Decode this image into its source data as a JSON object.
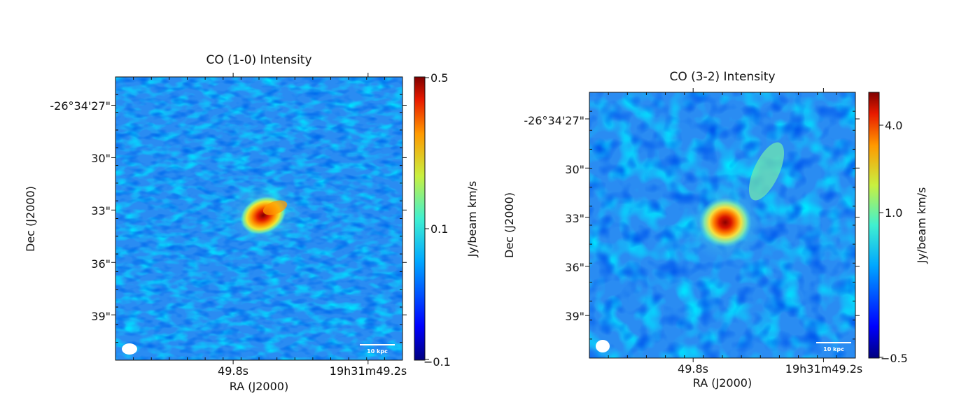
{
  "chart_data": [
    {
      "type": "heatmap",
      "title": "CO (1-0) Intensity",
      "xlabel": "RA (J2000)",
      "ylabel": "Dec (J2000)",
      "x_ticks": [
        "49.8s",
        "19h31m49.2s"
      ],
      "y_ticks": [
        "-26°34'27\"",
        "30\"",
        "33\"",
        "36\"",
        "39\""
      ],
      "colorbar": {
        "label": "Jy/beam km/s",
        "ticks": [
          "0.5",
          "0.1",
          "−0.1"
        ],
        "range": [
          -0.1,
          0.5
        ],
        "colormap": "jet"
      },
      "scalebar_label": "10 kpc",
      "peak": {
        "ra_fraction": 0.5,
        "dec": "33.3\"",
        "value": 0.5
      }
    },
    {
      "type": "heatmap",
      "title": "CO (3-2) Intensity",
      "xlabel": "RA (J2000)",
      "ylabel": "Dec (J2000)",
      "x_ticks": [
        "49.8s",
        "19h31m49.2s"
      ],
      "y_ticks": [
        "-26°34'27\"",
        "30\"",
        "33\"",
        "36\"",
        "39\""
      ],
      "colorbar": {
        "label": "Jy/beam km/s",
        "ticks": [
          "4.0",
          "1.0",
          "−0.5"
        ],
        "range": [
          -0.5,
          5.0
        ],
        "colormap": "jet"
      },
      "scalebar_label": "10 kpc",
      "peak": {
        "ra_fraction": 0.5,
        "dec": "33.3\"",
        "value": 5.0
      }
    }
  ]
}
